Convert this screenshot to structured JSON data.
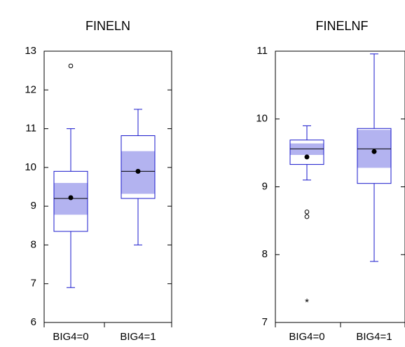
{
  "chart_data": [
    {
      "type": "boxplot",
      "title": "FINELN",
      "categories": [
        "BIG4=0",
        "BIG4=1"
      ],
      "ylim": [
        6,
        13
      ],
      "yticks": [
        6,
        7,
        8,
        9,
        10,
        11,
        12,
        13
      ],
      "colors": {
        "box": "#1a1acc",
        "ci": "#b3b3f0"
      },
      "boxes": [
        {
          "category": "BIG4=0",
          "min": 6.9,
          "q1": 8.35,
          "median": 9.2,
          "q3": 9.9,
          "max": 11.0,
          "mean": 9.22,
          "ci": [
            8.78,
            9.6
          ],
          "outliers": [
            {
              "value": 12.62,
              "marker": "circle"
            }
          ]
        },
        {
          "category": "BIG4=1",
          "min": 8.0,
          "q1": 9.2,
          "median": 9.9,
          "q3": 10.82,
          "max": 11.5,
          "mean": 9.9,
          "ci": [
            9.32,
            10.42
          ],
          "outliers": []
        }
      ]
    },
    {
      "type": "boxplot",
      "title": "FINELNF",
      "categories": [
        "BIG4=0",
        "BIG4=1"
      ],
      "ylim": [
        7,
        11
      ],
      "yticks": [
        7,
        8,
        9,
        10,
        11
      ],
      "colors": {
        "box": "#1a1acc",
        "ci": "#b3b3f0"
      },
      "boxes": [
        {
          "category": "BIG4=0",
          "min": 9.1,
          "q1": 9.33,
          "median": 9.56,
          "q3": 9.69,
          "max": 9.9,
          "mean": 9.44,
          "ci": [
            9.47,
            9.64
          ],
          "outliers": [
            {
              "value": 8.63,
              "marker": "circle"
            },
            {
              "value": 8.56,
              "marker": "circle"
            },
            {
              "value": 7.3,
              "marker": "star"
            }
          ]
        },
        {
          "category": "BIG4=1",
          "min": 7.9,
          "q1": 9.05,
          "median": 9.56,
          "q3": 9.86,
          "max": 10.96,
          "mean": 9.52,
          "ci": [
            9.28,
            9.84
          ],
          "outliers": []
        }
      ]
    }
  ]
}
